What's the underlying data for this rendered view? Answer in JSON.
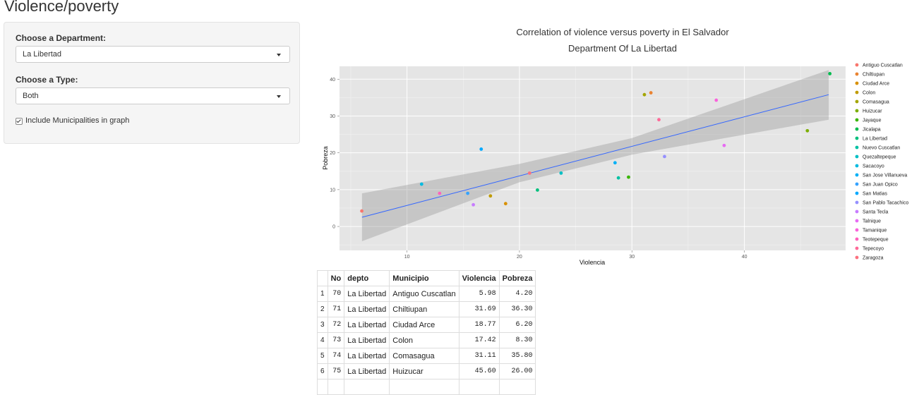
{
  "page": {
    "title": "Violence/poverty"
  },
  "sidebar": {
    "department_label": "Choose a Department:",
    "department_value": "La Libertad",
    "type_label": "Choose a Type:",
    "type_value": "Both",
    "include_municipalities_label": "Include Municipalities in graph",
    "include_municipalities_checked": true
  },
  "chart_data": {
    "type": "scatter",
    "title": "Correlation of violence versus poverty in El Salvador",
    "subtitle": "Department Of La Libertad",
    "xlabel": "Violencia",
    "ylabel": "Pobreza",
    "xlim": [
      4,
      49
    ],
    "ylim": [
      -6.5,
      43.5
    ],
    "xticks": [
      10,
      20,
      30,
      40
    ],
    "yticks": [
      0,
      10,
      20,
      30,
      40
    ],
    "grid": true,
    "legend_position": "right",
    "points": [
      {
        "name": "Antiguo Cuscatlan",
        "x": 5.98,
        "y": 4.2,
        "color": "#F8766D"
      },
      {
        "name": "Chiltiupan",
        "x": 31.69,
        "y": 36.3,
        "color": "#EA8331"
      },
      {
        "name": "Ciudad Arce",
        "x": 18.77,
        "y": 6.2,
        "color": "#D89000"
      },
      {
        "name": "Colon",
        "x": 17.42,
        "y": 8.3,
        "color": "#C09B00"
      },
      {
        "name": "Comasagua",
        "x": 31.11,
        "y": 35.8,
        "color": "#A3A500"
      },
      {
        "name": "Huizucar",
        "x": 45.6,
        "y": 26.0,
        "color": "#7CAE00"
      },
      {
        "name": "Jayaque",
        "x": 29.7,
        "y": 13.4,
        "color": "#39B600"
      },
      {
        "name": "Jicalapa",
        "x": 47.6,
        "y": 41.5,
        "color": "#00BB4E"
      },
      {
        "name": "La Libertad",
        "x": 21.6,
        "y": 9.9,
        "color": "#00BF7D"
      },
      {
        "name": "Nuevo Cuscatlan",
        "x": 28.8,
        "y": 13.2,
        "color": "#00C1A3"
      },
      {
        "name": "Quezaltepeque",
        "x": 23.7,
        "y": 14.5,
        "color": "#00BFC4"
      },
      {
        "name": "Sacacoyo",
        "x": 11.3,
        "y": 11.5,
        "color": "#00BAE0"
      },
      {
        "name": "San Jose Villanueva",
        "x": 28.5,
        "y": 17.3,
        "color": "#00B0F6"
      },
      {
        "name": "San Juan Opico",
        "x": 15.4,
        "y": 9.0,
        "color": "#35A2FF"
      },
      {
        "name": "San Matias",
        "x": 16.6,
        "y": 21.0,
        "color": "#00A9FF"
      },
      {
        "name": "San Pablo Tacachico",
        "x": 32.9,
        "y": 19.0,
        "color": "#9590FF"
      },
      {
        "name": "Santa Tecla",
        "x": 15.9,
        "y": 5.9,
        "color": "#C77CFF"
      },
      {
        "name": "Talnique",
        "x": 38.2,
        "y": 22.0,
        "color": "#E76BF3"
      },
      {
        "name": "Tamanique",
        "x": 37.5,
        "y": 34.3,
        "color": "#FA62DB"
      },
      {
        "name": "Teotepeque",
        "x": 12.9,
        "y": 9.0,
        "color": "#FF62BC"
      },
      {
        "name": "Tepecoyo",
        "x": 32.4,
        "y": 29.0,
        "color": "#FF6A98"
      },
      {
        "name": "Zaragoza",
        "x": 20.9,
        "y": 14.5,
        "color": "#FC717F"
      }
    ],
    "regression": {
      "color": "#3366FF",
      "line": [
        [
          6.0,
          2.5
        ],
        [
          47.5,
          35.8
        ]
      ],
      "band_upper": [
        [
          6.0,
          9.0
        ],
        [
          20.0,
          17.0
        ],
        [
          30.0,
          24.0
        ],
        [
          47.5,
          42.5
        ]
      ],
      "band_lower": [
        [
          47.5,
          29.0
        ],
        [
          30.0,
          19.5
        ],
        [
          20.0,
          12.0
        ],
        [
          6.0,
          -4.0
        ]
      ]
    },
    "legend": [
      "Antiguo Cuscatlan",
      "Chiltiupan",
      "Ciudad Arce",
      "Colon",
      "Comasagua",
      "Huizucar",
      "Jayaque",
      "Jicalapa",
      "La Libertad",
      "Nuevo Cuscatlan",
      "Quezaltepeque",
      "Sacacoyo",
      "San Jose Villanueva",
      "San Juan Opico",
      "San Matias",
      "San Pablo Tacachico",
      "Santa Tecla",
      "Talnique",
      "Tamanique",
      "Teotepeque",
      "Tepecoyo",
      "Zaragoza"
    ]
  },
  "table": {
    "headers": [
      "",
      "No",
      "depto",
      "Municipio",
      "Violencia",
      "Pobreza"
    ],
    "rows": [
      [
        "1",
        "70",
        "La Libertad",
        "Antiguo Cuscatlan",
        "5.98",
        "4.20"
      ],
      [
        "2",
        "71",
        "La Libertad",
        "Chiltiupan",
        "31.69",
        "36.30"
      ],
      [
        "3",
        "72",
        "La Libertad",
        "Ciudad Arce",
        "18.77",
        "6.20"
      ],
      [
        "4",
        "73",
        "La Libertad",
        "Colon",
        "17.42",
        "8.30"
      ],
      [
        "5",
        "74",
        "La Libertad",
        "Comasagua",
        "31.11",
        "35.80"
      ],
      [
        "6",
        "75",
        "La Libertad",
        "Huizucar",
        "45.60",
        "26.00"
      ],
      [
        "",
        "",
        "",
        "",
        "",
        ""
      ]
    ]
  }
}
